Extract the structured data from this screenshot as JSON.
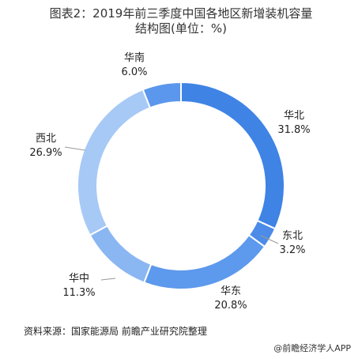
{
  "title_line1": "图表2：2019年前三季度中国各地区新增装机容量",
  "title_line2": "结构图(单位：%)",
  "source": "资料来源：国家能源局 前瞻产业研究院整理",
  "watermark": "@前瞻经济学人APP",
  "chart_data": {
    "type": "pie",
    "subtype": "donut",
    "title": "图表2：2019年前三季度中国各地区新增装机容量结构图(单位：%)",
    "unit": "%",
    "slices": [
      {
        "name": "华北",
        "value": 31.8,
        "label": "31.8%",
        "color": "#3f83e5"
      },
      {
        "name": "东北",
        "value": 3.2,
        "label": "3.2%",
        "color": "#4c8ce8"
      },
      {
        "name": "华东",
        "value": 20.8,
        "label": "20.8%",
        "color": "#5d99ec"
      },
      {
        "name": "华中",
        "value": 11.3,
        "label": "11.3%",
        "color": "#8ab6f2"
      },
      {
        "name": "西北",
        "value": 26.9,
        "label": "26.9%",
        "color": "#a6c9f6"
      },
      {
        "name": "华南",
        "value": 6.0,
        "label": "6.0%",
        "color": "#5b97ec"
      }
    ]
  }
}
